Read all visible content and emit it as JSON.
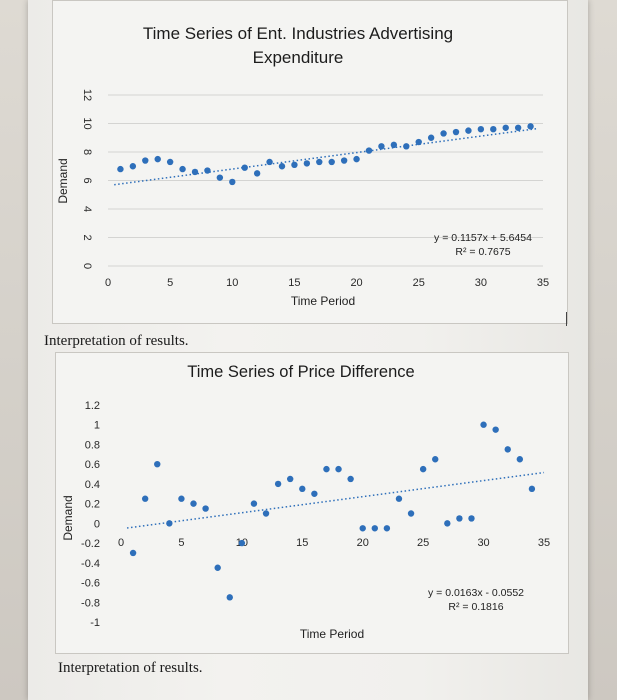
{
  "chart_data": [
    {
      "type": "scatter",
      "title": "Time Series of Ent. Industries Advertising Expenditure",
      "title_lines": [
        "Time Series of Ent. Industries Advertising",
        "Expenditure"
      ],
      "xlabel": "Time Period",
      "ylabel": "Demand",
      "xlim": [
        0,
        35
      ],
      "ylim": [
        0,
        12
      ],
      "x_ticks": [
        0,
        5,
        10,
        15,
        20,
        25,
        30,
        35
      ],
      "y_ticks": [
        0,
        2,
        4,
        6,
        8,
        10,
        12
      ],
      "x_tick_labels": [
        "0",
        "5",
        "10",
        "15",
        "20",
        "25",
        "30",
        "35"
      ],
      "y_tick_labels": [
        "0",
        "2",
        "4",
        "6",
        "8",
        "10",
        "12"
      ],
      "grid": "horizontal",
      "marker_color": "#2e6fba",
      "trendline": {
        "slope": 0.1157,
        "intercept": 5.6454,
        "style": "dotted"
      },
      "equation_label": "y = 0.1157x + 5.6454",
      "r2_label": "R² = 0.7675",
      "series": [
        {
          "x": [
            1,
            2,
            3,
            4,
            5,
            6,
            7,
            8,
            9,
            10,
            11,
            12,
            13,
            14,
            15,
            16,
            17,
            18,
            19,
            20,
            21,
            22,
            23,
            24,
            25,
            26,
            27,
            28,
            29,
            30,
            31,
            32,
            33,
            34
          ],
          "y": [
            6.8,
            7.0,
            7.4,
            7.5,
            7.3,
            6.8,
            6.6,
            6.7,
            6.2,
            5.9,
            6.9,
            6.5,
            7.3,
            7.0,
            7.1,
            7.2,
            7.3,
            7.3,
            7.4,
            7.5,
            8.1,
            8.4,
            8.5,
            8.4,
            8.7,
            9.0,
            9.3,
            9.4,
            9.5,
            9.6,
            9.6,
            9.7,
            9.7,
            9.8
          ]
        }
      ]
    },
    {
      "type": "scatter",
      "title": "Time Series of Price Difference",
      "xlabel": "Time Period",
      "ylabel": "Demand",
      "xlim": [
        0,
        35
      ],
      "ylim": [
        -1,
        1.2
      ],
      "x_ticks": [
        0,
        5,
        10,
        15,
        20,
        25,
        30,
        35
      ],
      "y_ticks": [
        -1,
        -0.8,
        -0.6,
        -0.4,
        -0.2,
        0,
        0.2,
        0.4,
        0.6,
        0.8,
        1,
        1.2
      ],
      "x_tick_labels": [
        "0",
        "5",
        "10",
        "15",
        "20",
        "25",
        "30",
        "35"
      ],
      "y_tick_labels": [
        "-1",
        "-0.8",
        "-0.6",
        "-0.4",
        "-0.2",
        "0",
        "0.2",
        "0.4",
        "0.6",
        "0.8",
        "1",
        "1.2"
      ],
      "grid": "none",
      "marker_color": "#2e6fba",
      "trendline": {
        "slope": 0.0163,
        "intercept": -0.0552,
        "style": "dotted"
      },
      "equation_label": "y = 0.0163x - 0.0552",
      "r2_label": "R² = 0.1816",
      "series": [
        {
          "x": [
            1,
            2,
            3,
            4,
            5,
            6,
            7,
            8,
            9,
            10,
            11,
            12,
            13,
            14,
            15,
            16,
            17,
            18,
            19,
            20,
            21,
            22,
            23,
            24,
            25,
            26,
            27,
            28,
            29,
            30,
            31,
            32,
            33,
            34
          ],
          "y": [
            -0.3,
            0.25,
            0.6,
            0.0,
            0.25,
            0.2,
            0.15,
            -0.45,
            -0.75,
            -0.2,
            0.2,
            0.1,
            0.4,
            0.45,
            0.35,
            0.3,
            0.55,
            0.55,
            0.45,
            -0.05,
            -0.05,
            -0.05,
            0.25,
            0.1,
            0.55,
            0.65,
            0.0,
            0.05,
            0.05,
            1.0,
            0.95,
            0.75,
            0.65,
            0.35
          ]
        }
      ]
    }
  ],
  "page": {
    "interpretation_1": "Interpretation of results.",
    "interpretation_2": "Interpretation of results."
  }
}
